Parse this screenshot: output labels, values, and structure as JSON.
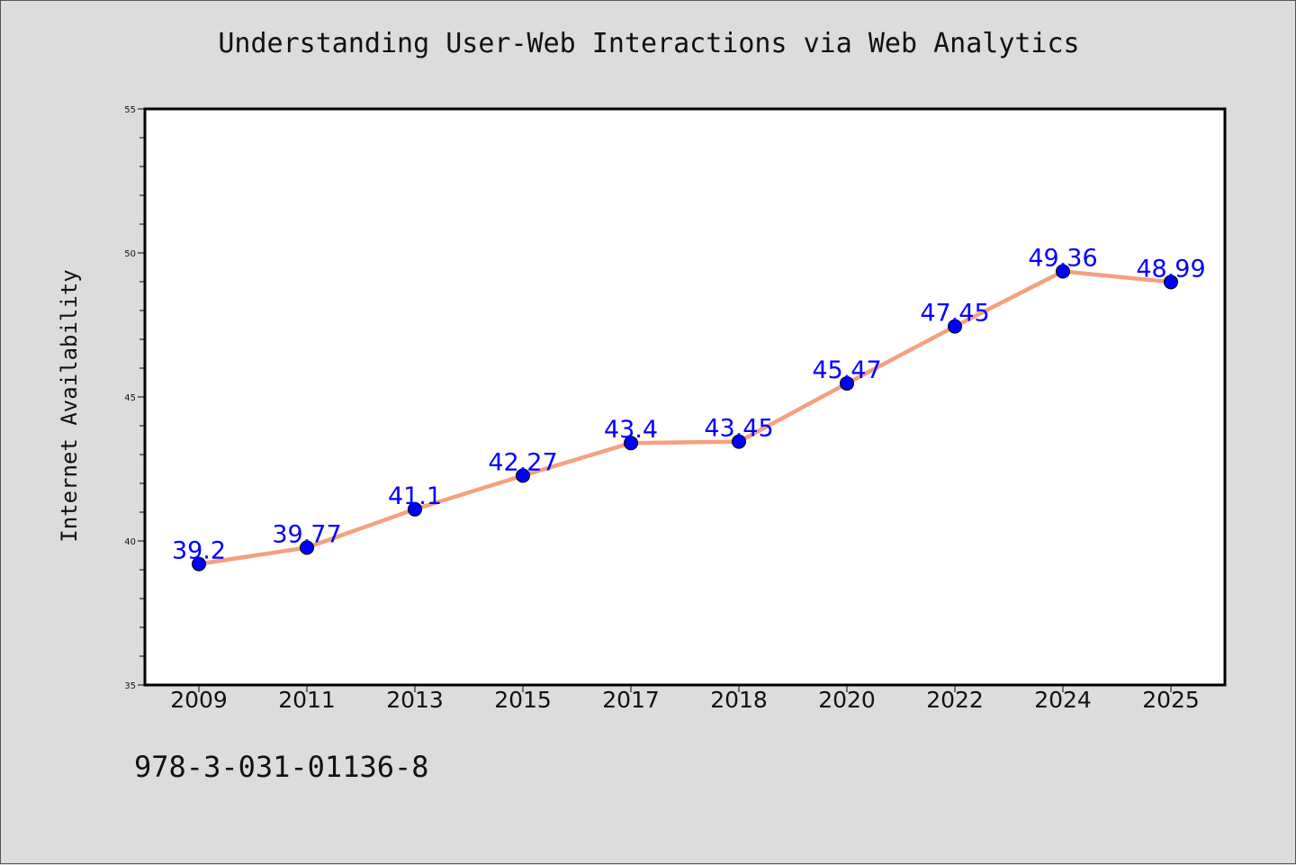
{
  "chart_data": {
    "type": "line",
    "title": "Understanding User-Web Interactions via Web Analytics",
    "xlabel": "",
    "ylabel": "Internet Availability",
    "categories": [
      "2009",
      "2011",
      "2013",
      "2015",
      "2017",
      "2018",
      "2020",
      "2022",
      "2024",
      "2025"
    ],
    "series": [
      {
        "values": [
          39.2,
          39.77,
          41.1,
          42.27,
          43.4,
          43.45,
          45.47,
          47.45,
          49.36,
          48.99
        ],
        "value_labels": [
          "39.2",
          "39.77",
          "41.1",
          "42.27",
          "43.4",
          "43.45",
          "45.47",
          "47.45",
          "49.36",
          "48.99"
        ],
        "line_color": "#f5a07e",
        "marker_color": "#0000ff",
        "label_color": "#0000ff"
      }
    ],
    "ylim": [
      35,
      55
    ],
    "y_ticks": [
      35,
      40,
      45,
      50,
      55
    ],
    "y_tick_labels": [
      "35",
      "40",
      "45",
      "50",
      "55"
    ],
    "grid": false,
    "annotation": "978-3-031-01136-8"
  },
  "colors": {
    "background": "#dcdcdc",
    "plot_background": "#ffffff"
  }
}
